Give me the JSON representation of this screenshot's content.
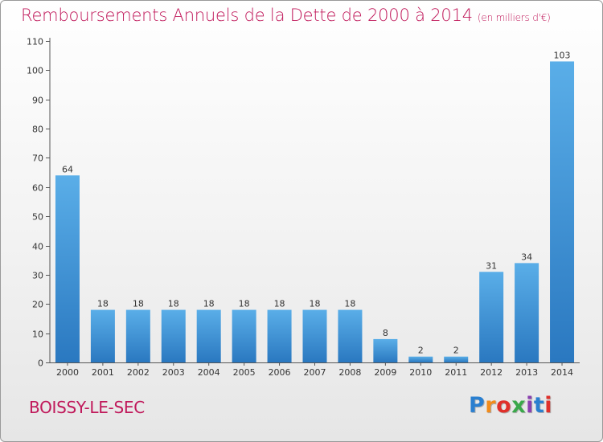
{
  "header": {
    "title": "Remboursements Annuels de la Dette de 2000 à 2014",
    "unit": "(en milliers d'€)"
  },
  "footer": {
    "commune": "BOISSY-LE-SEC",
    "logo_text": "Proxiti",
    "logo_colors": [
      "#2a7fd0",
      "#f28c1b",
      "#e0302a",
      "#3aa84a",
      "#8a3fb0",
      "#2a7fd0",
      "#e0302a"
    ]
  },
  "colors": {
    "title": "#c0185a",
    "bar_light": "#5aaee8",
    "bar_dark": "#2a78c0"
  },
  "chart_data": {
    "type": "bar",
    "categories": [
      "2000",
      "2001",
      "2002",
      "2003",
      "2004",
      "2005",
      "2006",
      "2007",
      "2008",
      "2009",
      "2010",
      "2011",
      "2012",
      "2013",
      "2014"
    ],
    "values": [
      64,
      18,
      18,
      18,
      18,
      18,
      18,
      18,
      18,
      8,
      2,
      2,
      31,
      34,
      103
    ],
    "ylim": [
      0,
      110
    ],
    "yticks": [
      0,
      10,
      20,
      30,
      40,
      50,
      60,
      70,
      80,
      90,
      100,
      110
    ],
    "grid": false,
    "legend": "none"
  }
}
